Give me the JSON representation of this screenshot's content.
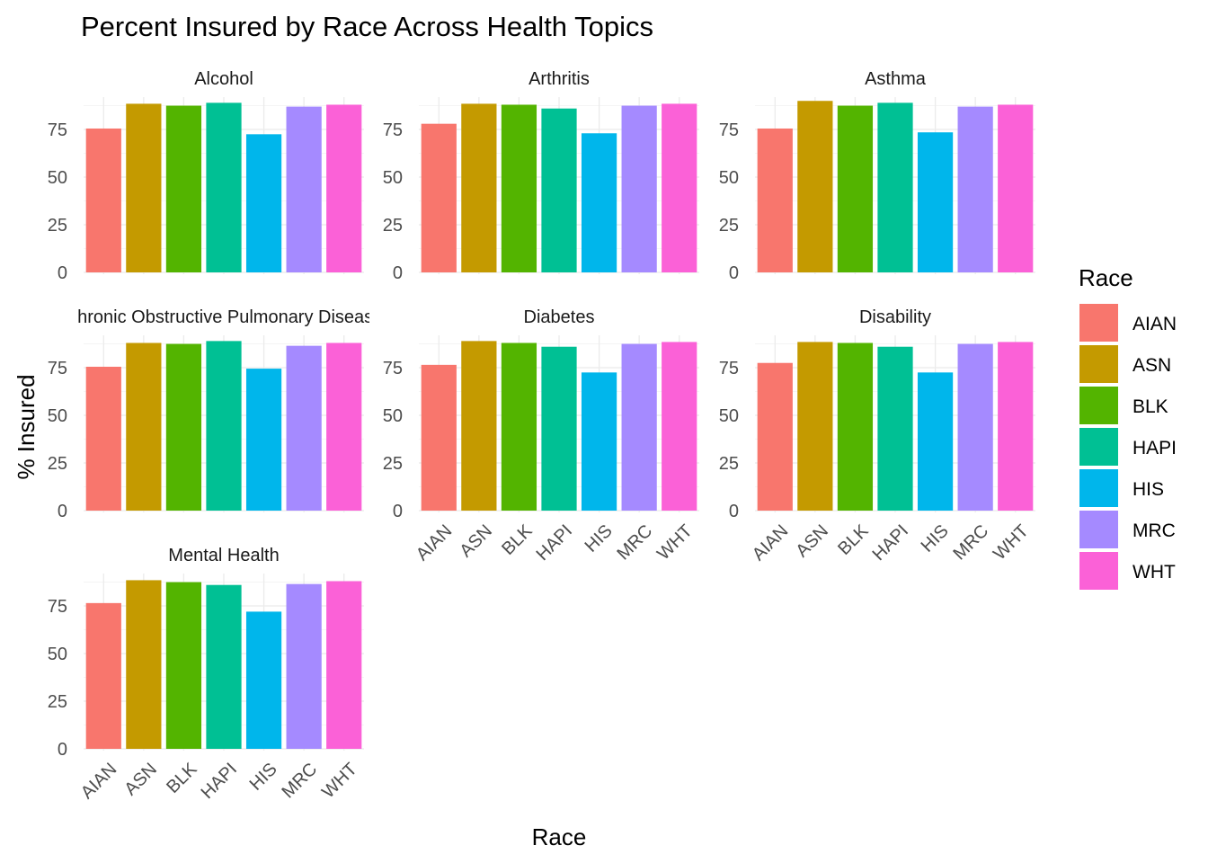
{
  "chart_data": {
    "type": "bar",
    "title": "Percent Insured by Race Across Health Topics",
    "xlabel": "Race",
    "ylabel": "% Insured",
    "ylim": [
      0,
      92
    ],
    "y_ticks": [
      0,
      25,
      50,
      75
    ],
    "grid": true,
    "legend_title": "Race",
    "legend_position": "right",
    "categories": [
      "AIAN",
      "ASN",
      "BLK",
      "HAPI",
      "HIS",
      "MRC",
      "WHT"
    ],
    "colors": {
      "AIAN": "#F8766D",
      "ASN": "#C49A00",
      "BLK": "#53B400",
      "HAPI": "#00C094",
      "HIS": "#00B6EB",
      "MRC": "#A58AFF",
      "WHT": "#FB61D7"
    },
    "panels": [
      {
        "name": "Alcohol",
        "values": [
          75.5,
          88.5,
          87.5,
          89,
          72.5,
          87,
          88
        ]
      },
      {
        "name": "Arthritis",
        "values": [
          78,
          88.5,
          88,
          86,
          73,
          87.5,
          88.5
        ]
      },
      {
        "name": "Asthma",
        "values": [
          75.5,
          90,
          87.5,
          89,
          73.5,
          87,
          88
        ]
      },
      {
        "name": "Chronic Obstructive Pulmonary Disease",
        "values": [
          75.5,
          88,
          87.5,
          89,
          74.5,
          86.5,
          88
        ]
      },
      {
        "name": "Diabetes",
        "values": [
          76.5,
          89,
          88,
          86,
          72.5,
          87.5,
          88.5
        ]
      },
      {
        "name": "Disability",
        "values": [
          77.5,
          88.5,
          88,
          86,
          72.5,
          87.5,
          88.5
        ]
      },
      {
        "name": "Mental Health",
        "values": [
          76.5,
          88.5,
          87.5,
          86,
          72,
          86.5,
          88
        ]
      }
    ]
  }
}
